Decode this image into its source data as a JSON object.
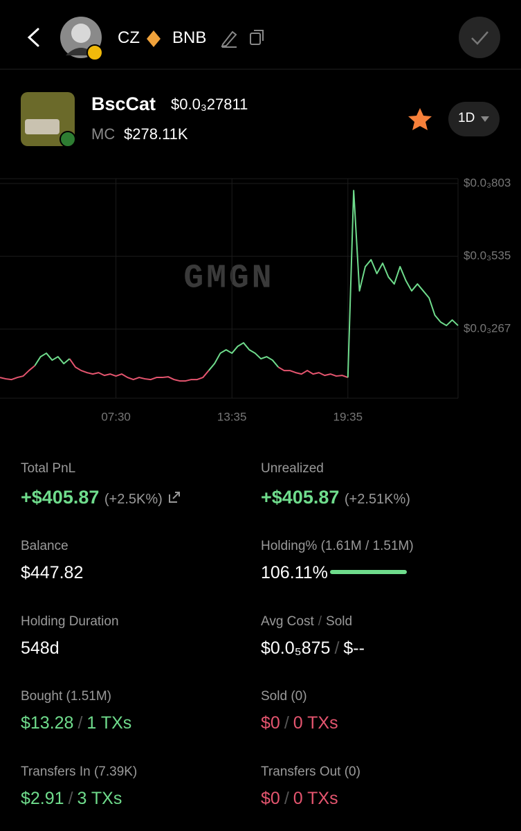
{
  "header": {
    "name": "CZ",
    "chain": "BNB"
  },
  "token": {
    "name": "BscCat",
    "price": "$0.0₃27811",
    "mc_label": "MC",
    "mc": "$278.11K",
    "timeframe": "1D"
  },
  "watermark": "GMGN",
  "chart_data": {
    "type": "line",
    "categories": [
      null,
      null,
      null,
      null,
      null,
      null,
      null,
      null,
      null,
      null,
      null,
      null,
      null,
      null,
      null,
      null,
      null,
      null,
      null,
      null,
      "07:30",
      null,
      null,
      null,
      null,
      null,
      null,
      null,
      null,
      null,
      null,
      null,
      null,
      null,
      null,
      null,
      null,
      null,
      null,
      null,
      "13:35",
      null,
      null,
      null,
      null,
      null,
      null,
      null,
      null,
      null,
      null,
      null,
      null,
      null,
      null,
      null,
      null,
      null,
      null,
      null,
      "19:35",
      null,
      null,
      null,
      null,
      null,
      null,
      null,
      null,
      null,
      null,
      null,
      null,
      null,
      null,
      null,
      null,
      null,
      null,
      null
    ],
    "series": [
      {
        "color": "#e5556f",
        "values": [
          8.84e-05,
          8.33e-05,
          8.07e-05,
          8.84e-05,
          9.35e-05,
          0.0001139,
          0.0001317,
          null,
          null,
          null,
          null,
          null,
          0.0001573,
          0.0001266,
          0.0001139,
          0.0001062,
          0.0001011,
          0.0001062,
          9.6e-05,
          0.0001011,
          9.35e-05,
          0.0001011,
          8.84e-05,
          8.07e-05,
          8.84e-05,
          8.33e-05,
          8.07e-05,
          8.84e-05,
          8.84e-05,
          9.09e-05,
          8.07e-05,
          7.56e-05,
          7.56e-05,
          8.07e-05,
          8.07e-05,
          8.84e-05,
          0.0001139,
          null,
          null,
          null,
          null,
          null,
          null,
          null,
          null,
          null,
          null,
          null,
          0.0001266,
          0.0001139,
          0.0001139,
          0.0001062,
          0.0001011,
          0.0001139,
          0.0001011,
          0.0001062,
          9.6e-05,
          0.0001011,
          9.35e-05,
          9.6e-05,
          8.84e-05,
          null,
          null,
          null,
          null,
          null,
          null,
          null,
          null,
          null,
          null,
          null,
          null,
          null,
          null,
          null,
          null,
          null,
          null,
          null
        ]
      },
      {
        "color": "#6fdc8c",
        "values": [
          null,
          null,
          null,
          null,
          null,
          null,
          0.0001317,
          0.0001649,
          0.0001777,
          0.0001522,
          0.0001649,
          0.0001394,
          0.0001573,
          null,
          null,
          null,
          null,
          null,
          null,
          null,
          null,
          null,
          null,
          null,
          null,
          null,
          null,
          null,
          null,
          null,
          null,
          null,
          null,
          null,
          null,
          null,
          0.0001139,
          0.0001394,
          0.0001777,
          0.0001904,
          0.0001777,
          0.0002032,
          0.000216,
          0.0001904,
          0.0001777,
          0.0001573,
          0.0001649,
          0.0001522,
          0.0001266,
          null,
          null,
          null,
          null,
          null,
          null,
          null,
          null,
          null,
          null,
          null,
          8.84e-05,
          0.0007774,
          0.0004074,
          0.0004967,
          0.0005222,
          0.0004712,
          0.0005094,
          0.0004584,
          0.0004329,
          0.0004967,
          0.0004456,
          0.0004074,
          0.0004329,
          0.0004074,
          0.0003818,
          0.000318,
          0.0002925,
          0.0002798,
          0.0003002,
          0.0002798
        ]
      }
    ],
    "ylim": [
      1.2e-05,
      0.000821
    ],
    "yticks": [
      {
        "value": 0.000803,
        "label": "$0.0₃803"
      },
      {
        "value": 0.000535,
        "label": "$0.0₃535"
      },
      {
        "value": 0.000267,
        "label": "$0.0₃267"
      }
    ],
    "grid": true
  },
  "stats": [
    {
      "label": "Total PnL",
      "value": "+$405.87",
      "detail": "(+2.5K%)"
    },
    {
      "label": "Unrealized",
      "value": "+$405.87",
      "detail": "(+2.51K%)"
    },
    {
      "label": "Balance",
      "value": "$447.82"
    },
    {
      "label": "Holding%",
      "label_detail": "(1.61M / 1.51M)",
      "value": "106.11%"
    },
    {
      "label": "Holding Duration",
      "value": "548d"
    },
    {
      "label": "Avg Cost",
      "label_sep": "/",
      "label2": "Sold",
      "value": "$0.0₅875",
      "sep": "/",
      "value2": "$--"
    },
    {
      "label": "Bought",
      "label_detail": "(1.51M)",
      "value": "$13.28",
      "sep": "/",
      "value2": "1 TXs"
    },
    {
      "label": "Sold",
      "label_detail": "(0)",
      "value": "$0",
      "sep": "/",
      "value2": "0 TXs"
    },
    {
      "label": "Transfers In",
      "label_detail": "(7.39K)",
      "value": "$2.91",
      "sep": "/",
      "value2": "3 TXs"
    },
    {
      "label": "Transfers Out",
      "label_detail": "(0)",
      "value": "$0",
      "sep": "/",
      "value2": "0 TXs"
    }
  ]
}
